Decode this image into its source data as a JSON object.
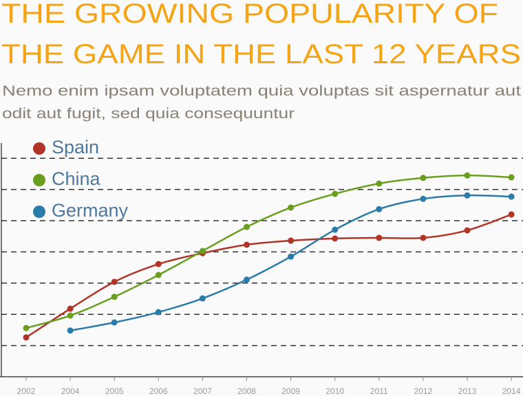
{
  "chart_data": {
    "type": "line",
    "title": [
      "THE GROWING POPULARITY OF",
      "THE GAME IN THE LAST 12 YEARS"
    ],
    "subtitle": [
      "Nemo enim ipsam voluptatem quia voluptas sit aspernatur aut",
      "odit aut fugit, sed quia consequuntur"
    ],
    "categories": [
      "2002",
      "2004",
      "2005",
      "2006",
      "2007",
      "2008",
      "2009",
      "2010",
      "2011",
      "2012",
      "2013",
      "2014"
    ],
    "series": [
      {
        "name": "Spain",
        "color": "#b03428",
        "values": [
          1.26,
          2.18,
          3.04,
          3.61,
          3.96,
          4.23,
          4.36,
          4.43,
          4.45,
          4.45,
          4.69,
          5.2
        ]
      },
      {
        "name": "China",
        "color": "#6a9e1f",
        "values": [
          1.56,
          1.96,
          2.56,
          3.26,
          4.03,
          4.8,
          5.42,
          5.86,
          6.19,
          6.37,
          6.45,
          6.39
        ]
      },
      {
        "name": "Germany",
        "color": "#2a7ba8",
        "values": [
          null,
          1.48,
          1.74,
          2.07,
          2.51,
          3.11,
          3.85,
          4.71,
          5.37,
          5.7,
          5.81,
          5.77
        ]
      }
    ],
    "ylim": [
      0,
      7.5
    ],
    "yticks": [
      1,
      2,
      3,
      4,
      5,
      6,
      7
    ],
    "grid": true,
    "legend": "top-left"
  }
}
